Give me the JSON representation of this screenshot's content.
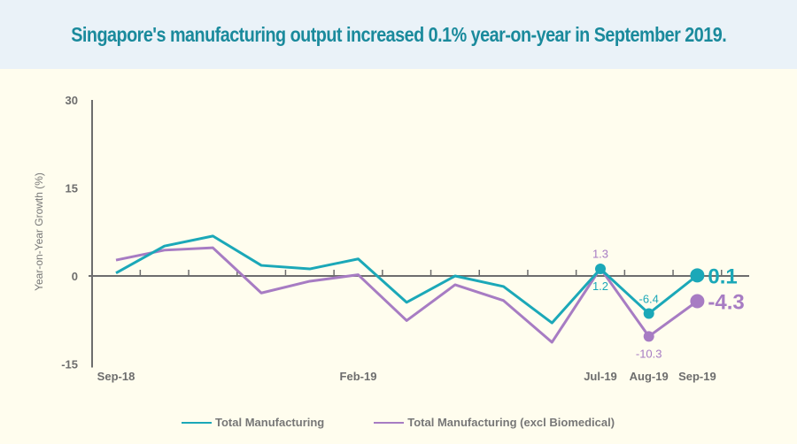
{
  "header": {
    "title": "Singapore's manufacturing output increased 0.1% year-on-year in September 2019."
  },
  "colors": {
    "header_bg": "#eaf2f8",
    "title": "#1a8a9c",
    "total": "#1ba8b8",
    "excl": "#a77cc3",
    "axis": "#6d6d6d",
    "background": "#fffdee"
  },
  "chart_data": {
    "type": "line",
    "title": "Singapore's manufacturing output increased 0.1% year-on-year in September 2019.",
    "xlabel": "",
    "ylabel": "Year-on-Year Growth (%)",
    "ylim": [
      -15,
      30
    ],
    "yticks": [
      "30",
      "15",
      "0",
      "-15"
    ],
    "ytick_values": [
      30,
      15,
      0,
      -15
    ],
    "x": [
      "Sep-18",
      "Oct-18",
      "Nov-18",
      "Dec-18",
      "Jan-19",
      "Feb-19",
      "Mar-19",
      "Apr-19",
      "May-19",
      "Jun-19",
      "Jul-19",
      "Aug-19",
      "Sep-19"
    ],
    "xtick_labels": [
      {
        "index": 0,
        "label": "Sep-18"
      },
      {
        "index": 5,
        "label": "Feb-19"
      },
      {
        "index": 10,
        "label": "Jul-19"
      },
      {
        "index": 11,
        "label": "Aug-19"
      },
      {
        "index": 12,
        "label": "Sep-19"
      }
    ],
    "grid": false,
    "legend_position": "bottom",
    "series": [
      {
        "name": "Total Manufacturing",
        "key": "total",
        "values": [
          0.5,
          5.1,
          6.8,
          1.8,
          1.2,
          2.9,
          -4.5,
          0.0,
          -1.8,
          -8.0,
          1.2,
          -6.4,
          0.1
        ],
        "annotations": [
          {
            "index": 10,
            "label": "1.2",
            "position": "below"
          },
          {
            "index": 11,
            "label": "-6.4",
            "position": "above"
          },
          {
            "index": 12,
            "label": "0.1",
            "position": "right-large"
          }
        ],
        "markers": [
          10,
          11,
          12
        ]
      },
      {
        "name": "Total Manufacturing (excl Biomedical)",
        "key": "excl",
        "values": [
          2.7,
          4.4,
          4.8,
          -2.9,
          -0.9,
          0.2,
          -7.6,
          -1.5,
          -4.2,
          -11.3,
          1.3,
          -10.3,
          -4.3
        ],
        "annotations": [
          {
            "index": 10,
            "label": "1.3",
            "position": "above"
          },
          {
            "index": 11,
            "label": "-10.3",
            "position": "below"
          },
          {
            "index": 12,
            "label": "-4.3",
            "position": "right-large"
          }
        ],
        "markers": [
          11,
          12
        ]
      }
    ]
  },
  "legend": [
    {
      "label": "Total Manufacturing",
      "key": "total"
    },
    {
      "label": "Total Manufacturing (excl Biomedical)",
      "key": "excl"
    }
  ]
}
